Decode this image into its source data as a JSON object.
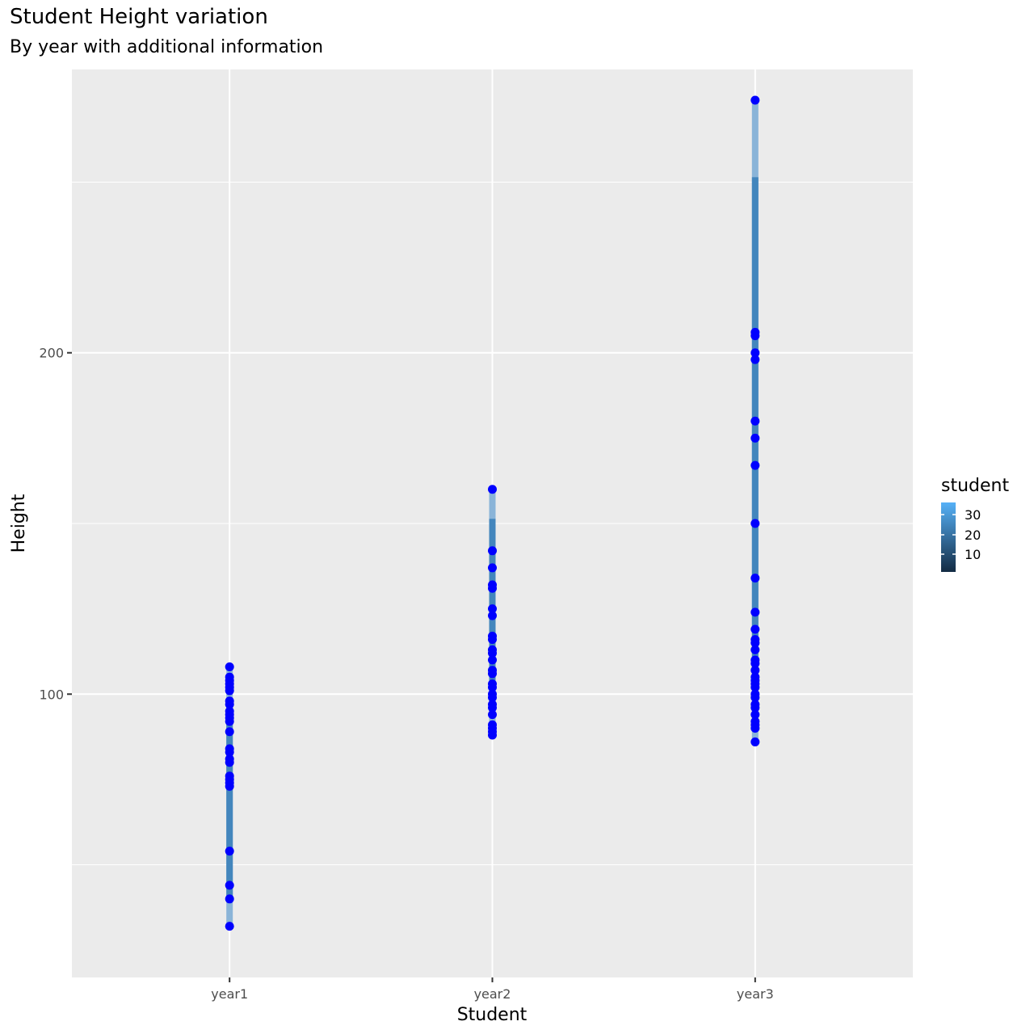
{
  "chart_data": {
    "type": "scatter",
    "title": "Student Height variation",
    "subtitle": "By year with additional information",
    "xlabel": "Student",
    "ylabel": "Height",
    "categories": [
      "year1",
      "year2",
      "year3"
    ],
    "ylim": [
      17,
      283
    ],
    "yticks": [
      100,
      200
    ],
    "grid": true,
    "point_color": "#0000ff",
    "panel_color": "#ebebeb",
    "grid_color": "#ffffff",
    "series": [
      {
        "category": "year1",
        "range": [
          32,
          108
        ],
        "values": [
          108,
          105,
          104,
          103,
          102,
          101,
          98,
          97,
          95,
          94,
          93,
          92,
          89,
          84,
          83,
          81,
          80,
          76,
          75,
          74,
          73,
          54,
          44,
          40,
          32
        ]
      },
      {
        "category": "year2",
        "range": [
          88,
          160
        ],
        "values": [
          160,
          142,
          137,
          132,
          131,
          125,
          123,
          117,
          116,
          113,
          112,
          110,
          107,
          106,
          103,
          102,
          100,
          99,
          97,
          96,
          94,
          91,
          90,
          89,
          88
        ]
      },
      {
        "category": "year3",
        "range": [
          86,
          274
        ],
        "values": [
          274,
          206,
          205,
          200,
          198,
          180,
          175,
          167,
          150,
          134,
          124,
          119,
          116,
          115,
          113,
          110,
          109,
          107,
          105,
          104,
          103,
          102,
          100,
          99,
          97,
          96,
          94,
          92,
          91,
          90,
          86
        ]
      }
    ],
    "legend": {
      "title": "student",
      "placement": "right",
      "labels": [
        "30",
        "20",
        "10"
      ],
      "gradient_top": "#56b1f7",
      "gradient_bottom": "#132b43"
    }
  }
}
